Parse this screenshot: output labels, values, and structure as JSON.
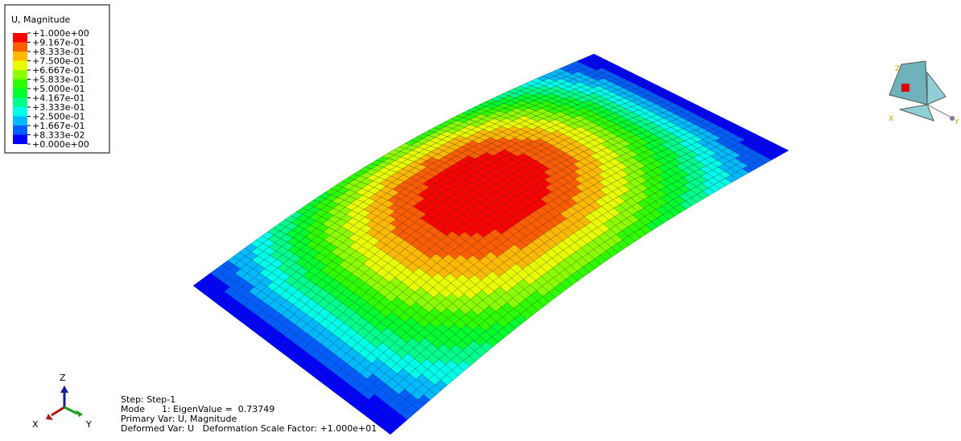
{
  "legend": {
    "title": "U, Magnitude",
    "labels": [
      "+1.000e+00",
      "+9.167e-01",
      "+8.333e-01",
      "+7.500e-01",
      "+6.667e-01",
      "+5.833e-01",
      "+5.000e-01",
      "+4.167e-01",
      "+3.333e-01",
      "+2.500e-01",
      "+1.667e-01",
      "+8.333e-02",
      "+0.000e+00"
    ],
    "colors": [
      "#ff0000",
      "#ff5d00",
      "#ffb900",
      "#e8ff00",
      "#8bff00",
      "#2eff00",
      "#00ff2e",
      "#00ff8b",
      "#00ffe8",
      "#00b9ff",
      "#005dff",
      "#0000ff"
    ]
  },
  "info": [
    "Step: Step-1",
    "Mode      1: EigenValue =  0.73749",
    "Primary Var: U, Magnitude",
    "Deformed Var: U   Deformation Scale Factor: +1.000e+01"
  ],
  "triad": {
    "z": "Z",
    "x": "X",
    "y": "Y"
  },
  "view_cube": {
    "z": "Z",
    "x": "X",
    "y": "Y"
  }
}
